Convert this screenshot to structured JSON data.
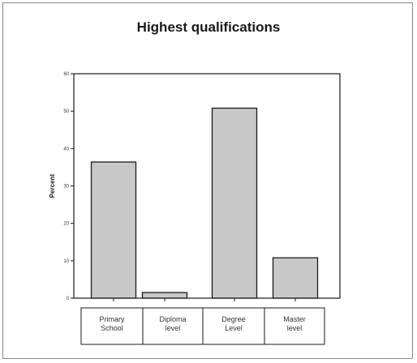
{
  "chart_data": {
    "type": "bar",
    "title": "Highest qualifications",
    "ylabel": "Percent",
    "xlabel": "",
    "categories": [
      [
        "Primary",
        "School"
      ],
      [
        "Diploma",
        "level"
      ],
      [
        "Degree",
        "Level"
      ],
      [
        "Master",
        "level"
      ]
    ],
    "values": [
      36.4,
      1.5,
      50.8,
      10.8
    ],
    "ylim": [
      0,
      60
    ],
    "yticks": [
      0,
      10,
      20,
      30,
      40,
      50,
      60
    ],
    "grid": false,
    "bar_color": "#c8c8c8",
    "bar_edge_color": "#1a1a1a"
  }
}
